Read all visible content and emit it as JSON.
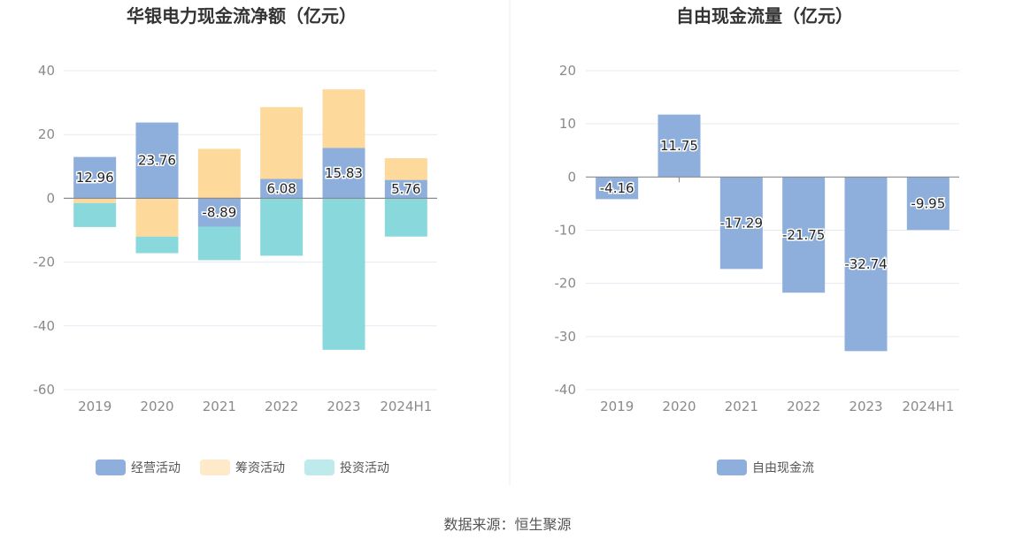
{
  "source_label": "数据来源：恒生聚源",
  "chart_data": [
    {
      "type": "bar",
      "stacked": true,
      "title": "华银电力现金流净额（亿元）",
      "categories": [
        "2019",
        "2020",
        "2021",
        "2022",
        "2023",
        "2024H1"
      ],
      "ylim": [
        -60,
        40
      ],
      "yticks": [
        40,
        20,
        0,
        -20,
        -40,
        -60
      ],
      "grid": true,
      "legend_position": "bottom",
      "series": [
        {
          "name": "经营活动",
          "color": "#8eaedc",
          "values": [
            12.96,
            23.76,
            -8.89,
            6.08,
            15.83,
            5.76
          ],
          "labels": [
            "12.96",
            "23.76",
            "-8.89",
            "6.08",
            "15.83",
            "5.76"
          ]
        },
        {
          "name": "筹资活动",
          "color": "#fdd99b",
          "values": [
            -1.5,
            -12.0,
            15.5,
            22.5,
            18.3,
            6.8
          ]
        },
        {
          "name": "投资活动",
          "color": "#88d8dc",
          "values": [
            -7.5,
            -5.2,
            -10.5,
            -18.0,
            -47.5,
            -12.0
          ]
        }
      ]
    },
    {
      "type": "bar",
      "title": "自由现金流量（亿元）",
      "categories": [
        "2019",
        "2020",
        "2021",
        "2022",
        "2023",
        "2024H1"
      ],
      "ylim": [
        -40,
        20
      ],
      "yticks": [
        20,
        10,
        0,
        -10,
        -20,
        -30,
        -40
      ],
      "grid": true,
      "legend_position": "bottom",
      "series": [
        {
          "name": "自由现金流",
          "color": "#8eaedc",
          "values": [
            -4.16,
            11.75,
            -17.29,
            -21.75,
            -32.74,
            -9.95
          ],
          "labels": [
            "-4.16",
            "11.75",
            "-17.29",
            "-21.75",
            "-32.74",
            "-9.95"
          ]
        }
      ]
    }
  ]
}
